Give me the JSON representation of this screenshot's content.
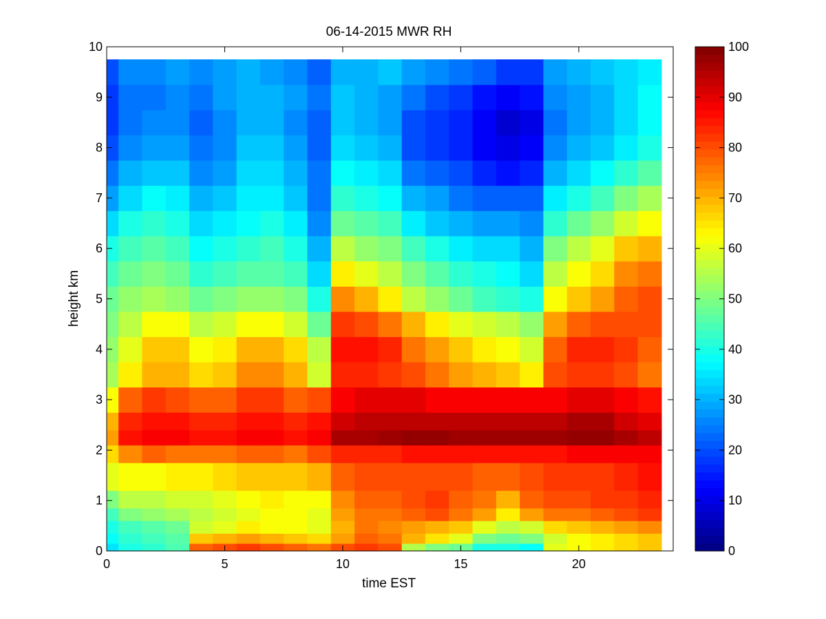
{
  "chart_data": {
    "type": "heatmap",
    "title": "06-14-2015 MWR RH",
    "xlabel": "time EST",
    "ylabel": "height km",
    "xlim": [
      0,
      24
    ],
    "ylim": [
      0,
      10
    ],
    "xticks": [
      0,
      5,
      10,
      15,
      20
    ],
    "yticks": [
      0,
      1,
      2,
      3,
      4,
      5,
      6,
      7,
      8,
      9,
      10
    ],
    "colorbar": {
      "min": 0,
      "max": 100,
      "ticks": [
        0,
        10,
        20,
        30,
        40,
        50,
        60,
        70,
        80,
        90,
        100
      ],
      "colormap": "jet"
    },
    "x": [
      0,
      1,
      2,
      3,
      4,
      5,
      6,
      7,
      8,
      9,
      10,
      11,
      12,
      13,
      14,
      15,
      16,
      17,
      18,
      19,
      20,
      21,
      22,
      23
    ],
    "x_edges": [
      0,
      0.5,
      1.5,
      2.5,
      3.5,
      4.5,
      5.5,
      6.5,
      7.5,
      8.5,
      9.5,
      10.5,
      11.5,
      12.5,
      13.5,
      14.5,
      15.5,
      16.5,
      17.5,
      18.5,
      19.5,
      20.5,
      21.5,
      22.5,
      23.5
    ],
    "y": [
      0.0,
      0.25,
      0.5,
      0.75,
      1.0,
      1.5,
      2.0,
      2.25,
      2.5,
      3.0,
      3.5,
      4.0,
      4.5,
      5.0,
      5.5,
      6.0,
      6.5,
      7.0,
      7.5,
      8.0,
      8.5,
      9.0,
      9.5
    ],
    "y_edges": [
      0.0,
      0.15,
      0.35,
      0.6,
      0.85,
      1.2,
      1.75,
      2.1,
      2.4,
      2.75,
      3.25,
      3.75,
      4.25,
      4.75,
      5.25,
      5.75,
      6.25,
      6.75,
      7.25,
      7.75,
      8.25,
      8.75,
      9.25,
      9.75
    ],
    "values": [
      [
        35,
        40,
        42,
        45,
        78,
        80,
        82,
        80,
        78,
        76,
        80,
        82,
        80,
        55,
        50,
        48,
        40,
        40,
        38,
        60,
        62,
        64,
        66,
        68
      ],
      [
        38,
        42,
        44,
        46,
        68,
        70,
        72,
        70,
        68,
        66,
        72,
        78,
        76,
        70,
        65,
        60,
        50,
        48,
        50,
        58,
        62,
        64,
        66,
        68
      ],
      [
        40,
        44,
        46,
        48,
        58,
        60,
        64,
        62,
        62,
        60,
        70,
        76,
        74,
        72,
        70,
        68,
        60,
        56,
        58,
        66,
        68,
        70,
        72,
        74
      ],
      [
        44,
        50,
        52,
        54,
        56,
        58,
        60,
        62,
        62,
        60,
        72,
        76,
        76,
        78,
        80,
        76,
        72,
        64,
        72,
        76,
        76,
        78,
        80,
        82
      ],
      [
        50,
        56,
        56,
        58,
        58,
        60,
        62,
        64,
        62,
        62,
        74,
        78,
        78,
        80,
        82,
        78,
        76,
        70,
        78,
        80,
        80,
        82,
        82,
        84
      ],
      [
        60,
        62,
        62,
        64,
        64,
        66,
        68,
        68,
        68,
        70,
        78,
        80,
        80,
        80,
        80,
        80,
        78,
        78,
        80,
        82,
        82,
        82,
        84,
        86
      ],
      [
        66,
        74,
        78,
        76,
        76,
        76,
        78,
        78,
        76,
        80,
        84,
        84,
        84,
        86,
        86,
        86,
        86,
        86,
        86,
        86,
        88,
        88,
        88,
        88
      ],
      [
        72,
        86,
        88,
        88,
        86,
        86,
        88,
        88,
        86,
        88,
        96,
        96,
        97,
        98,
        98,
        97,
        97,
        97,
        97,
        97,
        98,
        98,
        96,
        94
      ],
      [
        70,
        84,
        86,
        86,
        84,
        84,
        86,
        86,
        84,
        86,
        92,
        94,
        94,
        94,
        94,
        94,
        94,
        94,
        94,
        94,
        96,
        96,
        92,
        90
      ],
      [
        62,
        78,
        82,
        80,
        78,
        78,
        82,
        82,
        78,
        80,
        88,
        90,
        90,
        90,
        88,
        88,
        88,
        88,
        88,
        88,
        90,
        90,
        88,
        86
      ],
      [
        54,
        64,
        70,
        70,
        66,
        68,
        74,
        74,
        70,
        58,
        84,
        84,
        82,
        80,
        76,
        72,
        70,
        68,
        64,
        80,
        82,
        82,
        80,
        76
      ],
      [
        52,
        60,
        68,
        68,
        62,
        64,
        70,
        70,
        66,
        56,
        86,
        86,
        84,
        76,
        72,
        68,
        64,
        62,
        58,
        78,
        84,
        84,
        82,
        78
      ],
      [
        50,
        56,
        62,
        62,
        56,
        58,
        62,
        62,
        58,
        48,
        82,
        80,
        76,
        70,
        64,
        60,
        58,
        56,
        52,
        72,
        78,
        80,
        80,
        80
      ],
      [
        48,
        52,
        54,
        52,
        48,
        50,
        52,
        52,
        50,
        40,
        74,
        70,
        64,
        56,
        52,
        48,
        44,
        42,
        40,
        62,
        68,
        72,
        78,
        80
      ],
      [
        44,
        48,
        50,
        48,
        42,
        44,
        46,
        46,
        44,
        34,
        64,
        60,
        56,
        50,
        46,
        42,
        40,
        38,
        34,
        56,
        62,
        66,
        74,
        76
      ],
      [
        40,
        44,
        46,
        44,
        38,
        40,
        42,
        44,
        40,
        30,
        56,
        52,
        50,
        44,
        40,
        36,
        34,
        34,
        30,
        50,
        56,
        60,
        68,
        70
      ],
      [
        34,
        40,
        42,
        40,
        34,
        36,
        38,
        40,
        36,
        26,
        48,
        46,
        44,
        36,
        32,
        30,
        28,
        28,
        26,
        42,
        48,
        52,
        58,
        62
      ],
      [
        28,
        34,
        38,
        36,
        30,
        32,
        36,
        36,
        32,
        24,
        42,
        40,
        38,
        30,
        28,
        24,
        22,
        22,
        22,
        36,
        40,
        44,
        50,
        54
      ],
      [
        24,
        30,
        32,
        32,
        26,
        28,
        34,
        34,
        30,
        24,
        38,
        36,
        34,
        24,
        22,
        20,
        16,
        14,
        16,
        30,
        34,
        38,
        42,
        46
      ],
      [
        20,
        26,
        28,
        28,
        24,
        26,
        32,
        32,
        28,
        22,
        34,
        32,
        30,
        20,
        18,
        16,
        12,
        10,
        12,
        26,
        30,
        32,
        36,
        40
      ],
      [
        18,
        24,
        26,
        26,
        22,
        26,
        30,
        30,
        26,
        22,
        32,
        30,
        28,
        20,
        18,
        16,
        12,
        8,
        10,
        24,
        28,
        30,
        34,
        38
      ],
      [
        18,
        24,
        24,
        26,
        24,
        28,
        30,
        30,
        28,
        24,
        32,
        30,
        28,
        24,
        20,
        18,
        14,
        12,
        14,
        26,
        28,
        30,
        34,
        38
      ],
      [
        20,
        26,
        26,
        28,
        26,
        28,
        30,
        28,
        26,
        22,
        30,
        30,
        32,
        28,
        26,
        24,
        22,
        18,
        18,
        28,
        30,
        32,
        34,
        36
      ]
    ]
  }
}
